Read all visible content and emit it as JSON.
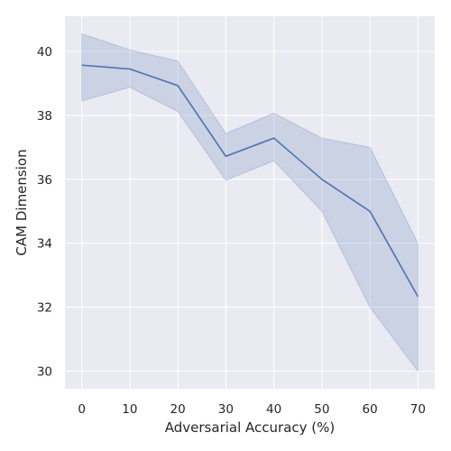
{
  "chart_data": {
    "type": "line",
    "title": "",
    "xlabel": "Adversarial Accuracy (%)",
    "ylabel": "CAM Dimension",
    "x": [
      0,
      10,
      20,
      30,
      40,
      50,
      60,
      70
    ],
    "series": [
      {
        "values": [
          39.57,
          39.45,
          38.93,
          36.72,
          37.29,
          36.0,
          35.0,
          32.33
        ],
        "lower": [
          38.45,
          38.88,
          38.12,
          35.97,
          36.58,
          35.0,
          32.0,
          30.0
        ],
        "upper": [
          40.55,
          40.05,
          39.7,
          37.43,
          38.07,
          37.29,
          37.0,
          34.0
        ],
        "color": "#4c72b0",
        "band_color": "#4c72b0"
      }
    ],
    "xlim": [
      -3.5,
      73.5
    ],
    "ylim": [
      29.45,
      41.1
    ],
    "xticks": [
      0,
      10,
      20,
      30,
      40,
      50,
      60,
      70
    ],
    "yticks": [
      30,
      32,
      34,
      36,
      38,
      40
    ],
    "grid": true,
    "background": "#eaeaf2",
    "grid_color": "#ffffff"
  }
}
